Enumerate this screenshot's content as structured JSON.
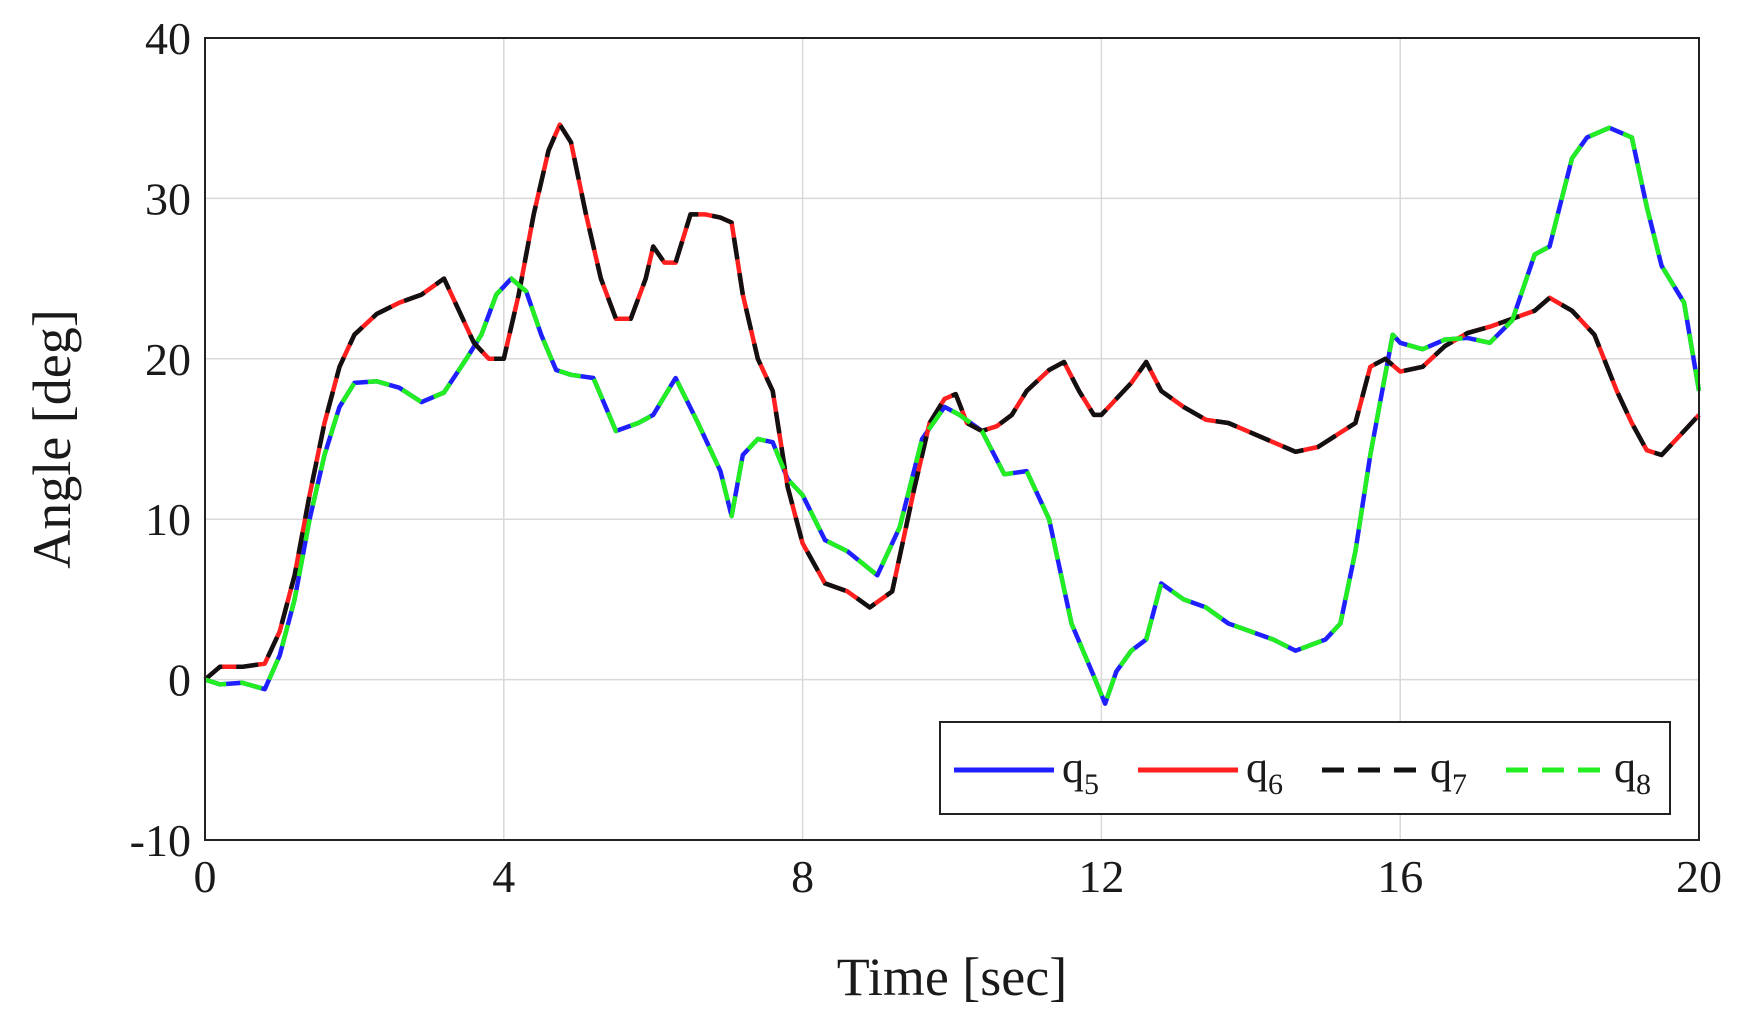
{
  "chart_data": {
    "type": "line",
    "xlabel": "Time [sec]",
    "ylabel": "Angle [deg]",
    "xlim": [
      0,
      20
    ],
    "ylim": [
      -10,
      40
    ],
    "xticks": [
      0,
      4,
      8,
      12,
      16,
      20
    ],
    "yticks": [
      -10,
      0,
      10,
      20,
      30,
      40
    ],
    "xtick_labels": [
      "0",
      "4",
      "8",
      "12",
      "16",
      "20"
    ],
    "ytick_labels": [
      "-10",
      "0",
      "10",
      "20",
      "30",
      "40"
    ],
    "grid": true,
    "legend_position": "bottom-right",
    "legend": [
      {
        "base": "q",
        "sub": "5"
      },
      {
        "base": "q",
        "sub": "6"
      },
      {
        "base": "q",
        "sub": "7"
      },
      {
        "base": "q",
        "sub": "8"
      }
    ],
    "series": [
      {
        "name": "q5",
        "color": "#1f1fff",
        "style": "solid",
        "x": [
          0,
          0.2,
          0.5,
          0.8,
          1.0,
          1.2,
          1.4,
          1.6,
          1.8,
          2.0,
          2.3,
          2.6,
          2.9,
          3.2,
          3.5,
          3.7,
          3.9,
          4.1,
          4.3,
          4.5,
          4.7,
          4.9,
          5.2,
          5.5,
          5.8,
          6.0,
          6.3,
          6.6,
          6.9,
          7.05,
          7.2,
          7.4,
          7.6,
          7.8,
          8.0,
          8.3,
          8.6,
          9.0,
          9.3,
          9.6,
          9.9,
          10.1,
          10.4,
          10.7,
          11.0,
          11.3,
          11.6,
          11.9,
          12.05,
          12.2,
          12.4,
          12.6,
          12.8,
          13.1,
          13.4,
          13.7,
          14.0,
          14.3,
          14.6,
          15.0,
          15.2,
          15.4,
          15.6,
          15.9,
          16.0,
          16.3,
          16.6,
          16.9,
          17.2,
          17.5,
          17.8,
          18.0,
          18.3,
          18.5,
          18.8,
          19.1,
          19.3,
          19.5,
          19.8,
          20.0
        ],
        "y": [
          0,
          -0.3,
          -0.2,
          -0.6,
          1.5,
          5.0,
          10.0,
          14.0,
          17.0,
          18.5,
          18.6,
          18.2,
          17.3,
          17.9,
          20.0,
          21.5,
          24.0,
          25.0,
          24.2,
          21.5,
          19.3,
          19.0,
          18.8,
          15.5,
          16.0,
          16.5,
          18.8,
          16.0,
          13.0,
          10.2,
          14.0,
          15.0,
          14.8,
          12.5,
          11.5,
          8.7,
          8.0,
          6.5,
          9.5,
          15.0,
          17.0,
          16.5,
          15.5,
          12.8,
          13.0,
          10.0,
          3.5,
          0.2,
          -1.5,
          0.5,
          1.8,
          2.5,
          6.0,
          5.0,
          4.5,
          3.5,
          3.0,
          2.5,
          1.8,
          2.5,
          3.5,
          8.0,
          14.0,
          21.5,
          21.0,
          20.6,
          21.2,
          21.3,
          21.0,
          22.4,
          26.5,
          27.0,
          32.5,
          33.8,
          34.4,
          33.8,
          29.5,
          25.8,
          23.5,
          18.0
        ]
      },
      {
        "name": "q6",
        "color": "#ff1f1f",
        "style": "solid",
        "x": [
          0,
          0.2,
          0.5,
          0.8,
          1.0,
          1.2,
          1.4,
          1.6,
          1.8,
          2.0,
          2.3,
          2.6,
          2.9,
          3.2,
          3.4,
          3.6,
          3.8,
          4.0,
          4.2,
          4.4,
          4.6,
          4.75,
          4.9,
          5.1,
          5.3,
          5.5,
          5.7,
          5.9,
          6.0,
          6.15,
          6.3,
          6.5,
          6.7,
          6.9,
          7.05,
          7.2,
          7.4,
          7.6,
          7.8,
          8.0,
          8.3,
          8.6,
          8.9,
          9.2,
          9.5,
          9.7,
          9.9,
          10.05,
          10.2,
          10.4,
          10.6,
          10.8,
          11.0,
          11.3,
          11.5,
          11.7,
          11.9,
          12.0,
          12.2,
          12.4,
          12.6,
          12.8,
          13.1,
          13.4,
          13.7,
          14.0,
          14.3,
          14.6,
          14.9,
          15.2,
          15.4,
          15.6,
          15.8,
          16.0,
          16.3,
          16.6,
          16.9,
          17.2,
          17.5,
          17.8,
          18.0,
          18.3,
          18.6,
          18.9,
          19.1,
          19.3,
          19.5,
          19.8,
          20.0
        ],
        "y": [
          0,
          0.8,
          0.8,
          1.0,
          3.0,
          6.5,
          11.5,
          16.0,
          19.5,
          21.5,
          22.8,
          23.5,
          24.0,
          25.0,
          23.0,
          21.0,
          20.0,
          20.0,
          24.0,
          29.0,
          33.0,
          34.6,
          33.5,
          29.0,
          25.0,
          22.5,
          22.5,
          25.0,
          27.0,
          26.0,
          26.0,
          29.0,
          29.0,
          28.8,
          28.5,
          24.0,
          20.0,
          18.0,
          12.0,
          8.5,
          6.0,
          5.5,
          4.5,
          5.5,
          12.0,
          16.0,
          17.5,
          17.8,
          16.0,
          15.5,
          15.8,
          16.5,
          18.0,
          19.3,
          19.8,
          18.0,
          16.5,
          16.5,
          17.5,
          18.5,
          19.8,
          18.0,
          17.0,
          16.2,
          16.0,
          15.4,
          14.8,
          14.2,
          14.5,
          15.4,
          16.0,
          19.5,
          20.0,
          19.2,
          19.5,
          20.8,
          21.6,
          22.0,
          22.5,
          23.0,
          23.8,
          23.0,
          21.5,
          18.0,
          16.0,
          14.3,
          14.0,
          15.5,
          16.5
        ]
      },
      {
        "name": "q7",
        "color": "#111111",
        "style": "dashed",
        "x": [
          0,
          0.2,
          0.5,
          0.8,
          1.0,
          1.2,
          1.4,
          1.6,
          1.8,
          2.0,
          2.3,
          2.6,
          2.9,
          3.2,
          3.4,
          3.6,
          3.8,
          4.0,
          4.2,
          4.4,
          4.6,
          4.75,
          4.9,
          5.1,
          5.3,
          5.5,
          5.7,
          5.9,
          6.0,
          6.15,
          6.3,
          6.5,
          6.7,
          6.9,
          7.05,
          7.2,
          7.4,
          7.6,
          7.8,
          8.0,
          8.3,
          8.6,
          8.9,
          9.2,
          9.5,
          9.7,
          9.9,
          10.05,
          10.2,
          10.4,
          10.6,
          10.8,
          11.0,
          11.3,
          11.5,
          11.7,
          11.9,
          12.0,
          12.2,
          12.4,
          12.6,
          12.8,
          13.1,
          13.4,
          13.7,
          14.0,
          14.3,
          14.6,
          14.9,
          15.2,
          15.4,
          15.6,
          15.8,
          16.0,
          16.3,
          16.6,
          16.9,
          17.2,
          17.5,
          17.8,
          18.0,
          18.3,
          18.6,
          18.9,
          19.1,
          19.3,
          19.5,
          19.8,
          20.0
        ],
        "y": [
          0,
          0.8,
          0.8,
          1.0,
          3.0,
          6.5,
          11.5,
          16.0,
          19.5,
          21.5,
          22.8,
          23.5,
          24.0,
          25.0,
          23.0,
          21.0,
          20.0,
          20.0,
          24.0,
          29.0,
          33.0,
          34.6,
          33.5,
          29.0,
          25.0,
          22.5,
          22.5,
          25.0,
          27.0,
          26.0,
          26.0,
          29.0,
          29.0,
          28.8,
          28.5,
          24.0,
          20.0,
          18.0,
          12.0,
          8.5,
          6.0,
          5.5,
          4.5,
          5.5,
          12.0,
          16.0,
          17.5,
          17.8,
          16.0,
          15.5,
          15.8,
          16.5,
          18.0,
          19.3,
          19.8,
          18.0,
          16.5,
          16.5,
          17.5,
          18.5,
          19.8,
          18.0,
          17.0,
          16.2,
          16.0,
          15.4,
          14.8,
          14.2,
          14.5,
          15.4,
          16.0,
          19.5,
          20.0,
          19.2,
          19.5,
          20.8,
          21.6,
          22.0,
          22.5,
          23.0,
          23.8,
          23.0,
          21.5,
          18.0,
          16.0,
          14.3,
          14.0,
          15.5,
          16.5
        ]
      },
      {
        "name": "q8",
        "color": "#22ee22",
        "style": "dashed",
        "x": [
          0,
          0.2,
          0.5,
          0.8,
          1.0,
          1.2,
          1.4,
          1.6,
          1.8,
          2.0,
          2.3,
          2.6,
          2.9,
          3.2,
          3.5,
          3.7,
          3.9,
          4.1,
          4.3,
          4.5,
          4.7,
          4.9,
          5.2,
          5.5,
          5.8,
          6.0,
          6.3,
          6.6,
          6.9,
          7.05,
          7.2,
          7.4,
          7.6,
          7.8,
          8.0,
          8.3,
          8.6,
          9.0,
          9.3,
          9.6,
          9.9,
          10.1,
          10.4,
          10.7,
          11.0,
          11.3,
          11.6,
          11.9,
          12.05,
          12.2,
          12.4,
          12.6,
          12.8,
          13.1,
          13.4,
          13.7,
          14.0,
          14.3,
          14.6,
          15.0,
          15.2,
          15.4,
          15.6,
          15.9,
          16.0,
          16.3,
          16.6,
          16.9,
          17.2,
          17.5,
          17.8,
          18.0,
          18.3,
          18.5,
          18.8,
          19.1,
          19.3,
          19.5,
          19.8,
          20.0
        ],
        "y": [
          0,
          -0.3,
          -0.2,
          -0.6,
          1.5,
          5.0,
          10.0,
          14.0,
          17.0,
          18.5,
          18.6,
          18.2,
          17.3,
          17.9,
          20.0,
          21.5,
          24.0,
          25.0,
          24.2,
          21.5,
          19.3,
          19.0,
          18.8,
          15.5,
          16.0,
          16.5,
          18.8,
          16.0,
          13.0,
          10.2,
          14.0,
          15.0,
          14.8,
          12.5,
          11.5,
          8.7,
          8.0,
          6.5,
          9.5,
          15.0,
          17.0,
          16.5,
          15.5,
          12.8,
          13.0,
          10.0,
          3.5,
          0.2,
          -1.5,
          0.5,
          1.8,
          2.5,
          6.0,
          5.0,
          4.5,
          3.5,
          3.0,
          2.5,
          1.8,
          2.5,
          3.5,
          8.0,
          14.0,
          21.5,
          21.0,
          20.6,
          21.2,
          21.3,
          21.0,
          22.4,
          26.5,
          27.0,
          32.5,
          33.8,
          34.4,
          33.8,
          29.5,
          25.8,
          23.5,
          18.0
        ]
      }
    ]
  }
}
